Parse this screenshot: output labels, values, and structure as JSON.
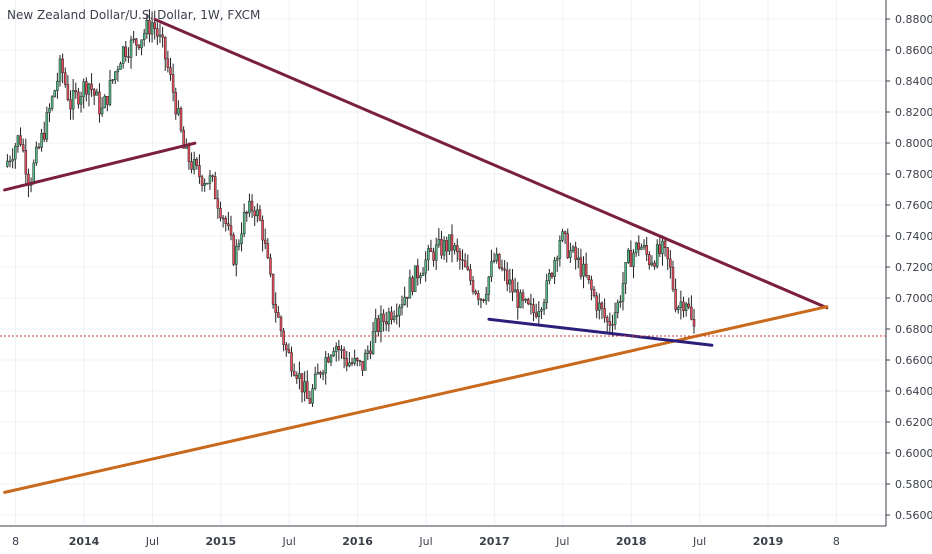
{
  "chart_data": {
    "type": "candlestick",
    "title": "New Zealand Dollar/U.S. Dollar, 1W, FXCM",
    "ylim": [
      0.548,
      0.888
    ],
    "y_ticks": [
      "0.88000",
      "0.86000",
      "0.84000",
      "0.82000",
      "0.80000",
      "0.78000",
      "0.76000",
      "0.74000",
      "0.72000",
      "0.70000",
      "0.68000",
      "0.66000",
      "0.64000",
      "0.62000",
      "0.60000",
      "0.58000",
      "0.56000"
    ],
    "x_ticks": [
      "8",
      "2014",
      "Jul",
      "2015",
      "Jul",
      "2016",
      "Jul",
      "2017",
      "Jul",
      "2018",
      "Jul",
      "2019",
      "8"
    ],
    "x_tick_dates": [
      2013.5,
      2014.0,
      2014.5,
      2015.0,
      2015.5,
      2016.0,
      2016.5,
      2017.0,
      2017.5,
      2018.0,
      2018.5,
      2019.0,
      2019.5
    ],
    "reference_level": 0.6755,
    "colors": {
      "up": "#53b987",
      "down": "#eb4d5c",
      "wick": "#222222",
      "resistance_line": "#7b1f3f",
      "support_line": "#c8691c",
      "lower_trend_line": "#2a1f7a",
      "reference_line": "#d23b32"
    },
    "price_path": [
      [
        2013.44,
        0.785
      ],
      [
        2013.55,
        0.805
      ],
      [
        2013.62,
        0.775
      ],
      [
        2013.75,
        0.815
      ],
      [
        2013.85,
        0.85
      ],
      [
        2013.92,
        0.825
      ],
      [
        2014.05,
        0.84
      ],
      [
        2014.15,
        0.82
      ],
      [
        2014.3,
        0.86
      ],
      [
        2014.4,
        0.865
      ],
      [
        2014.52,
        0.878
      ],
      [
        2014.6,
        0.86
      ],
      [
        2014.68,
        0.83
      ],
      [
        2014.75,
        0.795
      ],
      [
        2014.85,
        0.78
      ],
      [
        2014.95,
        0.775
      ],
      [
        2015.05,
        0.75
      ],
      [
        2015.12,
        0.725
      ],
      [
        2015.18,
        0.75
      ],
      [
        2015.26,
        0.76
      ],
      [
        2015.32,
        0.745
      ],
      [
        2015.4,
        0.7
      ],
      [
        2015.5,
        0.665
      ],
      [
        2015.57,
        0.655
      ],
      [
        2015.66,
        0.632
      ],
      [
        2015.75,
        0.655
      ],
      [
        2015.85,
        0.672
      ],
      [
        2015.93,
        0.66
      ],
      [
        2016.05,
        0.655
      ],
      [
        2016.15,
        0.68
      ],
      [
        2016.25,
        0.69
      ],
      [
        2016.35,
        0.7
      ],
      [
        2016.48,
        0.72
      ],
      [
        2016.58,
        0.73
      ],
      [
        2016.7,
        0.735
      ],
      [
        2016.82,
        0.715
      ],
      [
        2016.93,
        0.7
      ],
      [
        2017.02,
        0.725
      ],
      [
        2017.12,
        0.71
      ],
      [
        2017.22,
        0.695
      ],
      [
        2017.3,
        0.69
      ],
      [
        2017.4,
        0.705
      ],
      [
        2017.5,
        0.74
      ],
      [
        2017.57,
        0.73
      ],
      [
        2017.65,
        0.72
      ],
      [
        2017.75,
        0.7
      ],
      [
        2017.85,
        0.683
      ],
      [
        2017.92,
        0.695
      ],
      [
        2018.0,
        0.725
      ],
      [
        2018.08,
        0.735
      ],
      [
        2018.15,
        0.725
      ],
      [
        2018.25,
        0.73
      ],
      [
        2018.3,
        0.72
      ],
      [
        2018.35,
        0.695
      ],
      [
        2018.42,
        0.7
      ],
      [
        2018.47,
        0.68
      ]
    ]
  }
}
